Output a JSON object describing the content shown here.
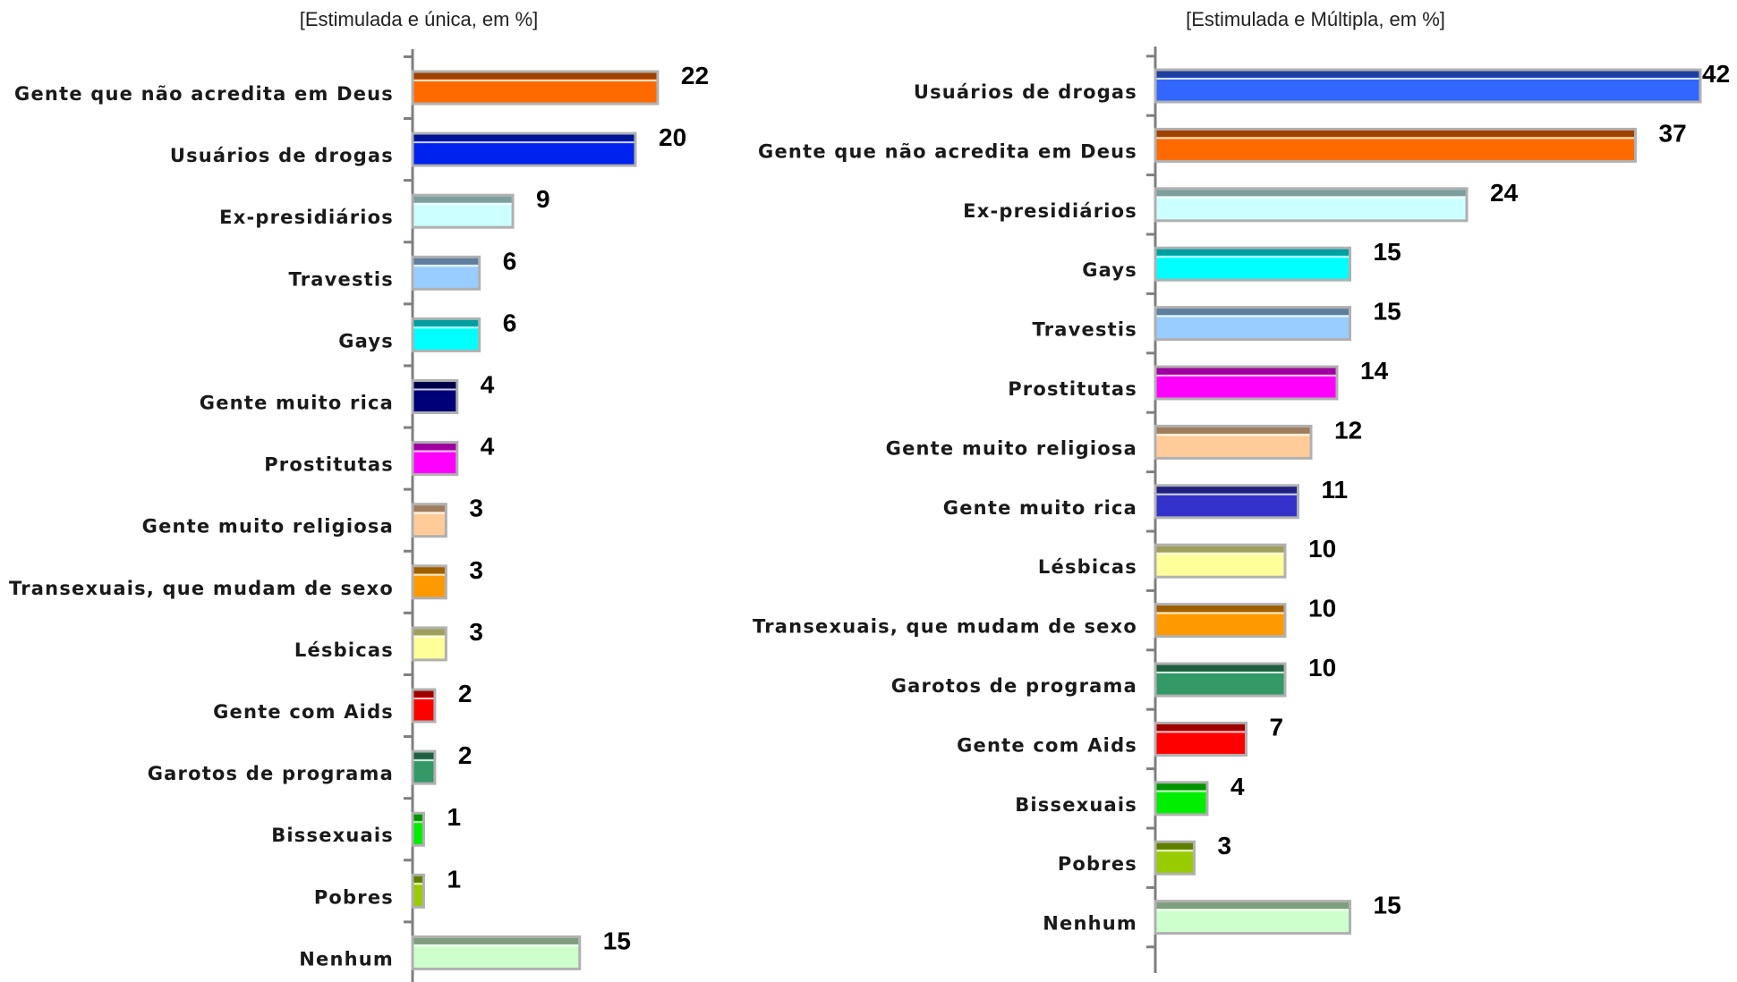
{
  "chart_data": [
    {
      "type": "bar",
      "orientation": "horizontal",
      "title": "[Estimulada e única, em %]",
      "categories": [
        "Gente que não acredita em Deus",
        "Usuários de drogas",
        "Ex-presidiários",
        "Travestis",
        "Gays",
        "Gente muito rica",
        "Prostitutas",
        "Gente muito religiosa",
        "Transexuais, que mudam de sexo",
        "Lésbicas",
        "Gente com Aids",
        "Garotos de programa",
        "Bissexuais",
        "Pobres",
        "Nenhum"
      ],
      "values": [
        22,
        20,
        9,
        6,
        6,
        4,
        4,
        3,
        3,
        3,
        2,
        2,
        1,
        1,
        15
      ],
      "value_labels": [
        "22",
        "20",
        "9",
        "6",
        "6",
        "4",
        "4",
        "3",
        "3",
        "3",
        "2",
        "2",
        "1",
        "1",
        "15"
      ],
      "colors": [
        "#ff6a00",
        "#0022ee",
        "#ccffff",
        "#99ccff",
        "#00ffff",
        "#000077",
        "#ff00ff",
        "#ffcc99",
        "#ff9900",
        "#ffff99",
        "#ff0000",
        "#339966",
        "#00ee00",
        "#99cc00",
        "#ccffcc"
      ],
      "xlim": [
        0,
        42
      ],
      "grid": false,
      "legend": "none"
    },
    {
      "type": "bar",
      "orientation": "horizontal",
      "title": "[Estimulada e Múltipla, em %]",
      "categories": [
        "Usuários de drogas",
        "Gente que não acredita em Deus",
        "Ex-presidiários",
        "Gays",
        "Travestis",
        "Prostitutas",
        "Gente muito religiosa",
        "Gente muito rica",
        "Lésbicas",
        "Transexuais, que mudam de sexo",
        "Garotos de programa",
        "Gente com Aids",
        "Bissexuais",
        "Pobres",
        "Nenhum"
      ],
      "values": [
        42,
        37,
        24,
        15,
        15,
        14,
        12,
        11,
        10,
        10,
        10,
        7,
        4,
        3,
        15
      ],
      "value_labels": [
        "42",
        "37",
        "24",
        "15",
        "15",
        "14",
        "12",
        "11",
        "10",
        "10",
        "10",
        "7",
        "4",
        "3",
        "15"
      ],
      "colors": [
        "#3366ff",
        "#ff6a00",
        "#ccffff",
        "#00ffff",
        "#99ccff",
        "#ff00ff",
        "#ffcc99",
        "#3333cc",
        "#ffff99",
        "#ff9900",
        "#339966",
        "#ff0000",
        "#00ee00",
        "#99cc00",
        "#ccffcc"
      ],
      "xlim": [
        0,
        42
      ],
      "grid": false,
      "legend": "none"
    }
  ]
}
